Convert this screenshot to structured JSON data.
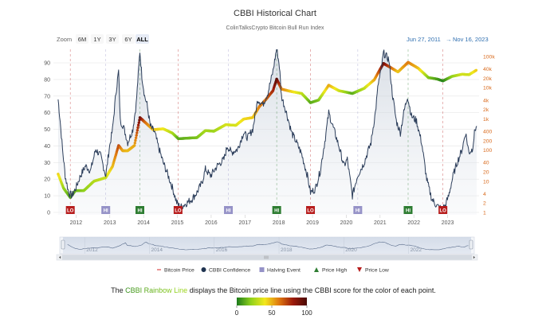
{
  "chart_data": {
    "type": "line",
    "title": "CBBI Historical Chart",
    "subtitle": "ColinTalksCrypto Bitcoin Bull Run Index",
    "range_selector": {
      "zoom_label": "Zoom",
      "buttons": [
        "6M",
        "1Y",
        "3Y",
        "6Y",
        "ALL"
      ],
      "selected": "ALL",
      "from": "Jun 27, 2011",
      "arrow": "→",
      "to": "Nov 16, 2023"
    },
    "x_ticks": [
      "2012",
      "2013",
      "2014",
      "2015",
      "2016",
      "2017",
      "2018",
      "2019",
      "2020",
      "2021",
      "2022",
      "2023"
    ],
    "left_axis_ticks": [
      0,
      10,
      20,
      30,
      40,
      50,
      60,
      70,
      80,
      90
    ],
    "right_axis_ticks": [
      "1",
      "2",
      "4",
      "10",
      "20",
      "40",
      "100",
      "200",
      "400",
      "1k",
      "2k",
      "4k",
      "10k",
      "20k",
      "40k",
      "100k"
    ],
    "ylim_left": [
      0,
      100
    ],
    "ylim_right": [
      1,
      100000
    ],
    "right_axis_scale": "log",
    "grid": "horizontal",
    "confidence_series": {
      "name": "CBBI Confidence",
      "color": "#2b3d5a",
      "points": [
        [
          2011.49,
          68
        ],
        [
          2011.55,
          55
        ],
        [
          2011.62,
          38
        ],
        [
          2011.7,
          22
        ],
        [
          2011.8,
          12
        ],
        [
          2011.9,
          10
        ],
        [
          2012.0,
          14
        ],
        [
          2012.15,
          22
        ],
        [
          2012.3,
          28
        ],
        [
          2012.45,
          25
        ],
        [
          2012.6,
          38
        ],
        [
          2012.75,
          34
        ],
        [
          2012.9,
          22
        ],
        [
          2013.0,
          38
        ],
        [
          2013.1,
          50
        ],
        [
          2013.2,
          72
        ],
        [
          2013.28,
          85
        ],
        [
          2013.33,
          55
        ],
        [
          2013.42,
          52
        ],
        [
          2013.55,
          42
        ],
        [
          2013.7,
          50
        ],
        [
          2013.8,
          65
        ],
        [
          2013.91,
          97
        ],
        [
          2013.97,
          82
        ],
        [
          2014.05,
          70
        ],
        [
          2014.12,
          65
        ],
        [
          2014.22,
          52
        ],
        [
          2014.35,
          48
        ],
        [
          2014.45,
          40
        ],
        [
          2014.6,
          30
        ],
        [
          2014.75,
          22
        ],
        [
          2014.87,
          15
        ],
        [
          2015.0,
          6
        ],
        [
          2015.1,
          3
        ],
        [
          2015.25,
          5
        ],
        [
          2015.45,
          8
        ],
        [
          2015.6,
          12
        ],
        [
          2015.75,
          18
        ],
        [
          2015.85,
          26
        ],
        [
          2016.0,
          22
        ],
        [
          2016.2,
          28
        ],
        [
          2016.4,
          32
        ],
        [
          2016.5,
          40
        ],
        [
          2016.62,
          36
        ],
        [
          2016.8,
          38
        ],
        [
          2016.98,
          48
        ],
        [
          2017.1,
          45
        ],
        [
          2017.25,
          50
        ],
        [
          2017.4,
          68
        ],
        [
          2017.55,
          65
        ],
        [
          2017.7,
          72
        ],
        [
          2017.85,
          85
        ],
        [
          2017.96,
          99
        ],
        [
          2018.04,
          88
        ],
        [
          2018.1,
          70
        ],
        [
          2018.25,
          60
        ],
        [
          2018.4,
          48
        ],
        [
          2018.55,
          42
        ],
        [
          2018.7,
          35
        ],
        [
          2018.87,
          22
        ],
        [
          2018.96,
          12
        ],
        [
          2019.1,
          14
        ],
        [
          2019.25,
          25
        ],
        [
          2019.4,
          45
        ],
        [
          2019.5,
          60
        ],
        [
          2019.62,
          52
        ],
        [
          2019.8,
          40
        ],
        [
          2019.95,
          28
        ],
        [
          2020.05,
          32
        ],
        [
          2020.2,
          10
        ],
        [
          2020.35,
          22
        ],
        [
          2020.55,
          30
        ],
        [
          2020.75,
          42
        ],
        [
          2020.88,
          60
        ],
        [
          2020.97,
          78
        ],
        [
          2021.05,
          85
        ],
        [
          2021.12,
          96
        ],
        [
          2021.28,
          92
        ],
        [
          2021.38,
          72
        ],
        [
          2021.5,
          55
        ],
        [
          2021.62,
          48
        ],
        [
          2021.72,
          60
        ],
        [
          2021.83,
          70
        ],
        [
          2021.95,
          58
        ],
        [
          2022.1,
          55
        ],
        [
          2022.25,
          42
        ],
        [
          2022.4,
          20
        ],
        [
          2022.55,
          8
        ],
        [
          2022.7,
          4
        ],
        [
          2022.85,
          2
        ],
        [
          2022.95,
          4
        ],
        [
          2023.05,
          10
        ],
        [
          2023.18,
          22
        ],
        [
          2023.3,
          30
        ],
        [
          2023.45,
          38
        ],
        [
          2023.55,
          48
        ],
        [
          2023.65,
          36
        ],
        [
          2023.75,
          38
        ],
        [
          2023.83,
          50
        ],
        [
          2023.88,
          52
        ]
      ]
    },
    "price_series": {
      "name": "Bitcoin Price",
      "color_scale": "CBBI Rainbow (green 0 → yellow 50 → red 100)",
      "points": [
        [
          2011.49,
          17,
          50
        ],
        [
          2011.65,
          6,
          25
        ],
        [
          2011.85,
          3,
          10
        ],
        [
          2012.0,
          5,
          15
        ],
        [
          2012.25,
          5,
          22
        ],
        [
          2012.55,
          10,
          30
        ],
        [
          2012.9,
          13,
          35
        ],
        [
          2013.1,
          30,
          55
        ],
        [
          2013.28,
          140,
          80
        ],
        [
          2013.4,
          95,
          60
        ],
        [
          2013.55,
          95,
          55
        ],
        [
          2013.75,
          140,
          60
        ],
        [
          2013.91,
          1100,
          97
        ],
        [
          2014.05,
          800,
          75
        ],
        [
          2014.3,
          450,
          55
        ],
        [
          2014.6,
          480,
          45
        ],
        [
          2014.87,
          350,
          30
        ],
        [
          2015.05,
          230,
          12
        ],
        [
          2015.3,
          240,
          15
        ],
        [
          2015.6,
          250,
          18
        ],
        [
          2015.85,
          420,
          28
        ],
        [
          2016.1,
          400,
          25
        ],
        [
          2016.45,
          650,
          38
        ],
        [
          2016.75,
          620,
          38
        ],
        [
          2016.98,
          980,
          48
        ],
        [
          2017.25,
          1100,
          52
        ],
        [
          2017.45,
          2500,
          68
        ],
        [
          2017.65,
          4300,
          72
        ],
        [
          2017.85,
          8000,
          85
        ],
        [
          2017.96,
          19000,
          99
        ],
        [
          2018.1,
          9000,
          70
        ],
        [
          2018.4,
          7500,
          50
        ],
        [
          2018.7,
          6500,
          35
        ],
        [
          2018.96,
          3300,
          12
        ],
        [
          2019.2,
          4000,
          18
        ],
        [
          2019.5,
          12000,
          60
        ],
        [
          2019.8,
          8000,
          38
        ],
        [
          2020.2,
          6500,
          12
        ],
        [
          2020.55,
          9500,
          32
        ],
        [
          2020.85,
          18000,
          58
        ],
        [
          2021.12,
          60000,
          96
        ],
        [
          2021.4,
          40000,
          70
        ],
        [
          2021.55,
          32000,
          52
        ],
        [
          2021.85,
          65000,
          70
        ],
        [
          2022.15,
          42000,
          55
        ],
        [
          2022.45,
          21000,
          20
        ],
        [
          2022.7,
          19000,
          10
        ],
        [
          2022.88,
          16500,
          2
        ],
        [
          2023.15,
          23000,
          22
        ],
        [
          2023.45,
          27000,
          38
        ],
        [
          2023.65,
          26000,
          36
        ],
        [
          2023.88,
          37000,
          52
        ]
      ]
    },
    "events": [
      {
        "label": "LO",
        "type": "Price Low",
        "x": 2011.85,
        "color": "#b71c1c"
      },
      {
        "label": "HI",
        "type": "Halving Event",
        "x": 2012.9,
        "color": "#9592c7"
      },
      {
        "label": "HI",
        "type": "Price High",
        "x": 2013.91,
        "color": "#2e7d32"
      },
      {
        "label": "LO",
        "type": "Price Low",
        "x": 2015.04,
        "color": "#b71c1c"
      },
      {
        "label": "HI",
        "type": "Halving Event",
        "x": 2016.53,
        "color": "#9592c7"
      },
      {
        "label": "HI",
        "type": "Price High",
        "x": 2017.96,
        "color": "#2e7d32"
      },
      {
        "label": "LO",
        "type": "Price Low",
        "x": 2018.96,
        "color": "#b71c1c"
      },
      {
        "label": "HI",
        "type": "Halving Event",
        "x": 2020.36,
        "color": "#9592c7"
      },
      {
        "label": "HI",
        "type": "Price High",
        "x": 2021.85,
        "color": "#2e7d32"
      },
      {
        "label": "LO",
        "type": "Price Low",
        "x": 2022.88,
        "color": "#b71c1c"
      }
    ],
    "navigator": {
      "x_ticks": [
        "2012",
        "2014",
        "2016",
        "2018",
        "2020",
        "2022"
      ]
    },
    "legend": {
      "placement": "bottom",
      "items": [
        {
          "label": "Bitcoin Price",
          "symbol": "dash",
          "color": "#e06666"
        },
        {
          "label": "CBBI Confidence",
          "symbol": "circle",
          "color": "#1f3350"
        },
        {
          "label": "Halving Event",
          "symbol": "square",
          "color": "#9592c7"
        },
        {
          "label": "Price High",
          "symbol": "triangle-up",
          "color": "#2e7d32"
        },
        {
          "label": "Price Low",
          "symbol": "triangle-down",
          "color": "#b71c1c"
        }
      ]
    }
  },
  "footer": {
    "prefix": "The ",
    "rainbow_text": "CBBI Rainbow Line",
    "suffix": " displays the Bitcoin price line using the CBBI score for the color of each point."
  },
  "colorbar": {
    "ticks": [
      "0",
      "50",
      "100"
    ],
    "colors": [
      "#1b7a1b",
      "#8fd11c",
      "#f2e81d",
      "#e07a10",
      "#9c1a0a",
      "#4a0a05"
    ]
  }
}
